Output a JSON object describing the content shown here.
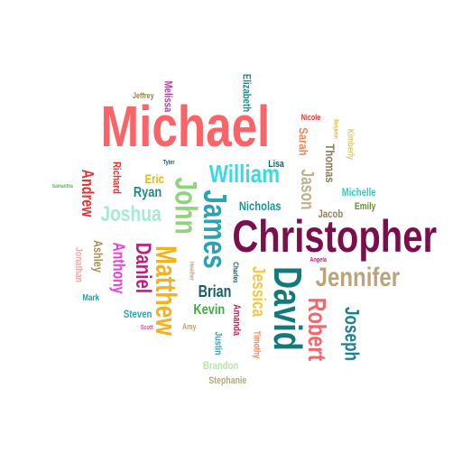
{
  "words": [
    {
      "text": "Michael",
      "color": "#f86468"
    },
    {
      "text": "Christopher",
      "color": "#7b0f4d"
    },
    {
      "text": "Jennifer",
      "color": "#b9a57a"
    },
    {
      "text": "David",
      "color": "#137a7a"
    },
    {
      "text": "Matthew",
      "color": "#f3b21d"
    },
    {
      "text": "James",
      "color": "#2aa3b5"
    },
    {
      "text": "John",
      "color": "#8fd37a"
    },
    {
      "text": "Robert",
      "color": "#f86468"
    },
    {
      "text": "Joseph",
      "color": "#1a7f90"
    },
    {
      "text": "William",
      "color": "#35dbe5"
    },
    {
      "text": "Joshua",
      "color": "#a9e8d3"
    },
    {
      "text": "Daniel",
      "color": "#c21c7e"
    },
    {
      "text": "Anthony",
      "color": "#f03bd1"
    },
    {
      "text": "Jason",
      "color": "#bfb08b"
    },
    {
      "text": "Andrew",
      "color": "#ef2d2d"
    },
    {
      "text": "Jessica",
      "color": "#f2c842"
    },
    {
      "text": "Thomas",
      "color": "#8b7d57"
    },
    {
      "text": "Sarah",
      "color": "#f3855a"
    },
    {
      "text": "Brian",
      "color": "#12606b"
    },
    {
      "text": "Ryan",
      "color": "#1c8a8c"
    },
    {
      "text": "Kevin",
      "color": "#3ab03e"
    },
    {
      "text": "Nicholas",
      "color": "#1d949a"
    },
    {
      "text": "Michelle",
      "color": "#1cd3c8"
    },
    {
      "text": "Ashley",
      "color": "#a59053"
    },
    {
      "text": "Elizabeth",
      "color": "#1d8d86"
    },
    {
      "text": "Melissa",
      "color": "#b43d9b"
    },
    {
      "text": "Amanda",
      "color": "#c81f4f"
    },
    {
      "text": "Kimberly",
      "color": "#d8cb6b"
    },
    {
      "text": "Jacob",
      "color": "#907f53"
    },
    {
      "text": "Emily",
      "color": "#6a8f2b"
    },
    {
      "text": "Lisa",
      "color": "#12606b"
    },
    {
      "text": "Eric",
      "color": "#e9b513"
    },
    {
      "text": "Richard",
      "color": "#ef2d2d"
    },
    {
      "text": "Steven",
      "color": "#2aa3b5"
    },
    {
      "text": "Brandon",
      "color": "#b6e7a4"
    },
    {
      "text": "Stephanie",
      "color": "#b9a57a"
    },
    {
      "text": "Jonathan",
      "color": "#f3a5a0"
    },
    {
      "text": "Justin",
      "color": "#2aa3b5"
    },
    {
      "text": "Timothy",
      "color": "#f3855a"
    },
    {
      "text": "Nicole",
      "color": "#ef2d2d"
    },
    {
      "text": "Jeffrey",
      "color": "#907f53"
    },
    {
      "text": "Mark",
      "color": "#2d9b8f"
    },
    {
      "text": "Amy",
      "color": "#b9a57a"
    },
    {
      "text": "Charles",
      "color": "#12606b"
    },
    {
      "text": "Angela",
      "color": "#c21c7e"
    },
    {
      "text": "Tyler",
      "color": "#12606b"
    },
    {
      "text": "Scott",
      "color": "#e64b9a"
    },
    {
      "text": "Heather",
      "color": "#b9a57a"
    },
    {
      "text": "Samantha",
      "color": "#56b94f"
    },
    {
      "text": "Benjamin",
      "color": "#e9b513"
    }
  ]
}
